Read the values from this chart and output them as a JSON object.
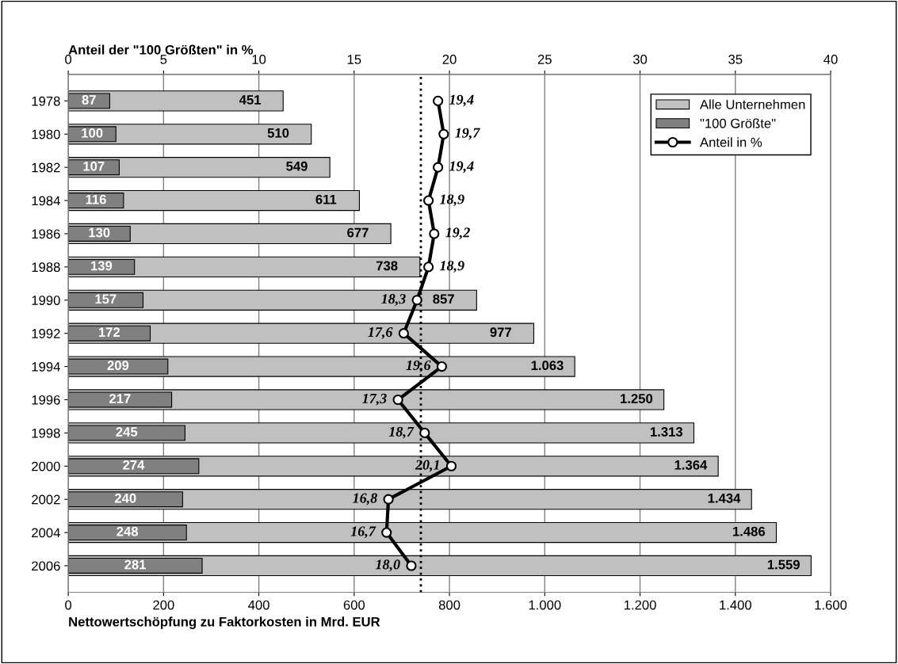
{
  "chart_data": {
    "type": "bar",
    "orientation": "horizontal",
    "xlabel": "Nettowertschöpfung zu Faktorkosten in Mrd. EUR",
    "x2label": "Anteil der \"100 Größten\" in %",
    "categories": [
      "1978",
      "1980",
      "1982",
      "1984",
      "1986",
      "1988",
      "1990",
      "1992",
      "1994",
      "1996",
      "1998",
      "2000",
      "2002",
      "2004",
      "2006"
    ],
    "series": [
      {
        "name": "Alle Unternehmen",
        "color": "#c0c0c0",
        "values": [
          451,
          510,
          549,
          611,
          677,
          738,
          857,
          977,
          1063,
          1250,
          1313,
          1364,
          1434,
          1486,
          1559
        ],
        "value_labels": [
          "451",
          "510",
          "549",
          "611",
          "677",
          "738",
          "857",
          "977",
          "1.063",
          "1.250",
          "1.313",
          "1.364",
          "1.434",
          "1.486",
          "1.559"
        ]
      },
      {
        "name": "\"100 Größte\"",
        "color": "#808080",
        "values": [
          87,
          100,
          107,
          116,
          130,
          139,
          157,
          172,
          209,
          217,
          245,
          274,
          240,
          248,
          281
        ],
        "value_labels": [
          "87",
          "100",
          "107",
          "116",
          "130",
          "139",
          "157",
          "172",
          "209",
          "217",
          "245",
          "274",
          "240",
          "248",
          "281"
        ]
      },
      {
        "name": "Anteil in %",
        "type": "line",
        "axis": "x2",
        "color": "#000000",
        "marker": "circle",
        "values": [
          19.4,
          19.7,
          19.4,
          18.9,
          19.2,
          18.9,
          18.3,
          17.6,
          19.6,
          17.3,
          18.7,
          20.1,
          16.8,
          16.7,
          18.0
        ],
        "value_labels": [
          "19,4",
          "19,7",
          "19,4",
          "18,9",
          "19,2",
          "18,9",
          "18,3",
          "17,6",
          "19,6",
          "17,3",
          "18,7",
          "20,1",
          "16,8",
          "16,7",
          "18,0"
        ]
      }
    ],
    "xlim": [
      0,
      1600
    ],
    "xticks": [
      0,
      200,
      400,
      600,
      800,
      {
        "value": 1000,
        "label": "1.000"
      },
      {
        "value": 1200,
        "label": "1.200"
      },
      {
        "value": 1400,
        "label": "1.400"
      },
      {
        "value": 1600,
        "label": "1.600"
      }
    ],
    "x2lim": [
      0,
      40
    ],
    "x2ticks": [
      0,
      5,
      10,
      15,
      20,
      25,
      30,
      35,
      40
    ],
    "ref_lines": [
      {
        "axis": "x2",
        "value": 18.5,
        "line_style": "dotted",
        "color": "#000000"
      }
    ],
    "grid": "x",
    "legend": "top right"
  }
}
